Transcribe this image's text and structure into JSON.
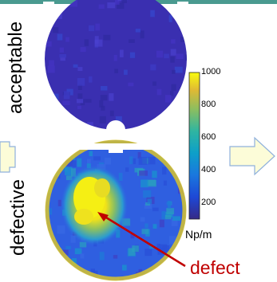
{
  "labels": {
    "acceptable": "acceptable",
    "defective": "defective",
    "defect": "defect"
  },
  "colorbar": {
    "unit": "Np/m",
    "ticks": [
      "1000",
      "800",
      "600",
      "400",
      "200"
    ],
    "tick_values": [
      1000,
      800,
      600,
      400,
      200
    ],
    "min": 100,
    "max": 1000,
    "colormap": "parula"
  },
  "colors": {
    "accent_bar": "#4a9a90",
    "arrow_fill": "#fcfcd8",
    "arrow_stroke": "#8fb1dc",
    "defect_red": "#c00000",
    "background_low": "#3a2fb0"
  }
}
